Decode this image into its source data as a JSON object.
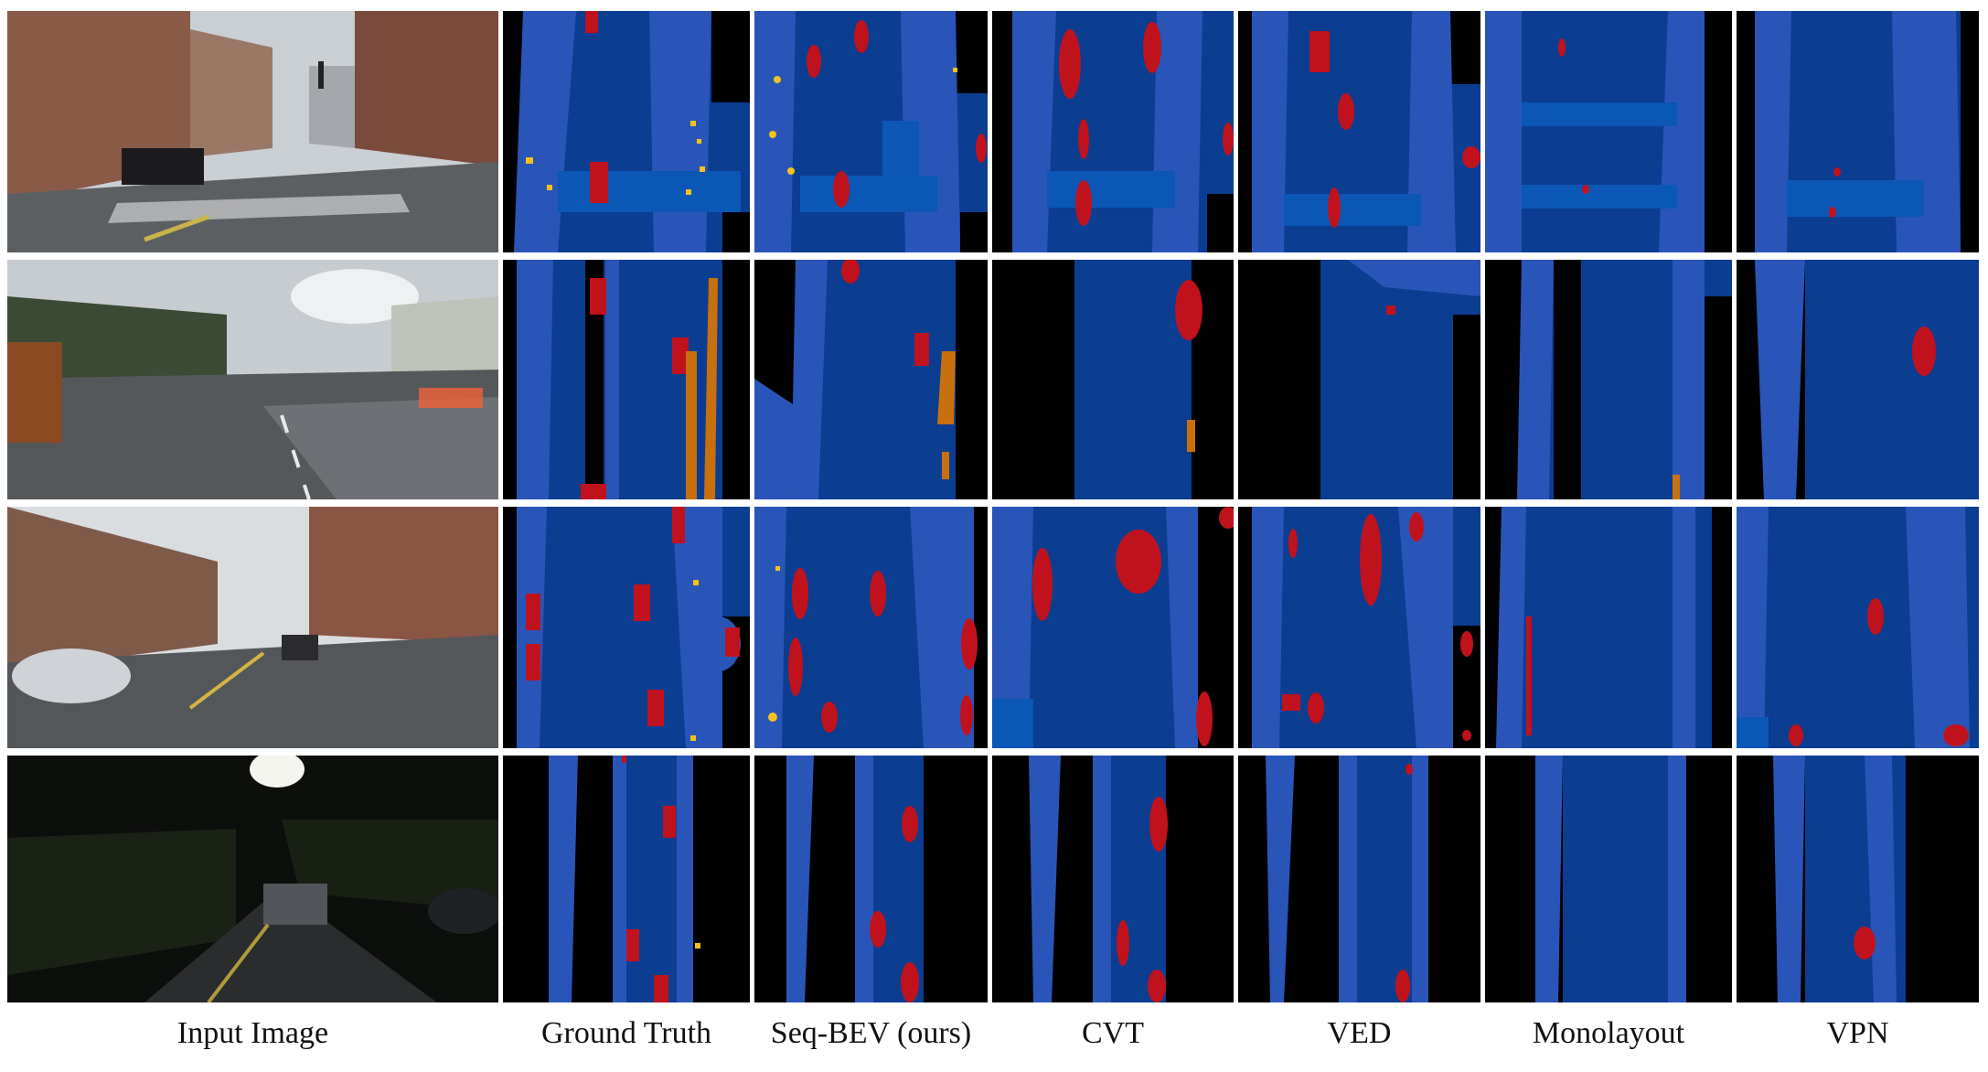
{
  "columns": [
    {
      "id": "input",
      "label": "Input Image"
    },
    {
      "id": "gt",
      "label": "Ground Truth"
    },
    {
      "id": "seqbev",
      "label": "Seq-BEV (ours)"
    },
    {
      "id": "cvt",
      "label": "CVT"
    },
    {
      "id": "ved",
      "label": "VED"
    },
    {
      "id": "monolayout",
      "label": "Monolayout"
    },
    {
      "id": "vpn",
      "label": "VPN"
    }
  ],
  "rows": [
    {
      "scene": "city-crosswalk-day"
    },
    {
      "scene": "tree-lined-road-overcast"
    },
    {
      "scene": "brick-buildings-street-day"
    },
    {
      "scene": "street-night"
    }
  ],
  "colors": {
    "drivable": "#0b3d91",
    "lane": "#2a55b8",
    "crossing": "#0a57b5",
    "vehicle": "#c0121d",
    "pedestrian": "#f4c21a",
    "barrier": "#c8700d",
    "background": "#000000"
  }
}
